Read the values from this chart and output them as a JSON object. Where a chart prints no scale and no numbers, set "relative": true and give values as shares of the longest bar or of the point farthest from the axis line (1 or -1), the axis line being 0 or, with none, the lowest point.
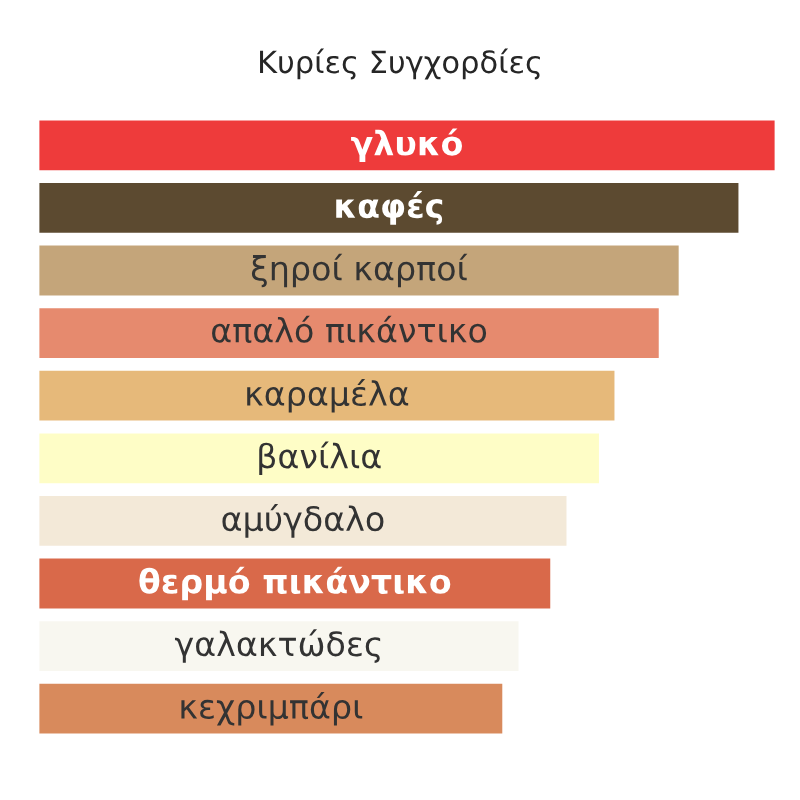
{
  "chart_data": {
    "type": "bar",
    "title": "Κυρίες Συγχορδίες",
    "orientation": "horizontal",
    "relative": true,
    "categories": [
      "γλυκό",
      "καφές",
      "ξηροί καρποί",
      "απαλό πικάντικο",
      "καραμέλα",
      "βανίλια",
      "αμύγδαλο",
      "θερμό πικάντικο",
      "γαλακτώδες",
      "κεχριμπάρι"
    ],
    "values": [
      1,
      0.951,
      0.87,
      0.843,
      0.783,
      0.762,
      0.718,
      0.696,
      0.653,
      0.631
    ],
    "colors": [
      "#ee3b3b",
      "#5c4a30",
      "#c4a57a",
      "#e68a6e",
      "#e6b97a",
      "#fefdc6",
      "#f3e9d8",
      "#d9694a",
      "#f8f7f0",
      "#d88a5c"
    ]
  }
}
